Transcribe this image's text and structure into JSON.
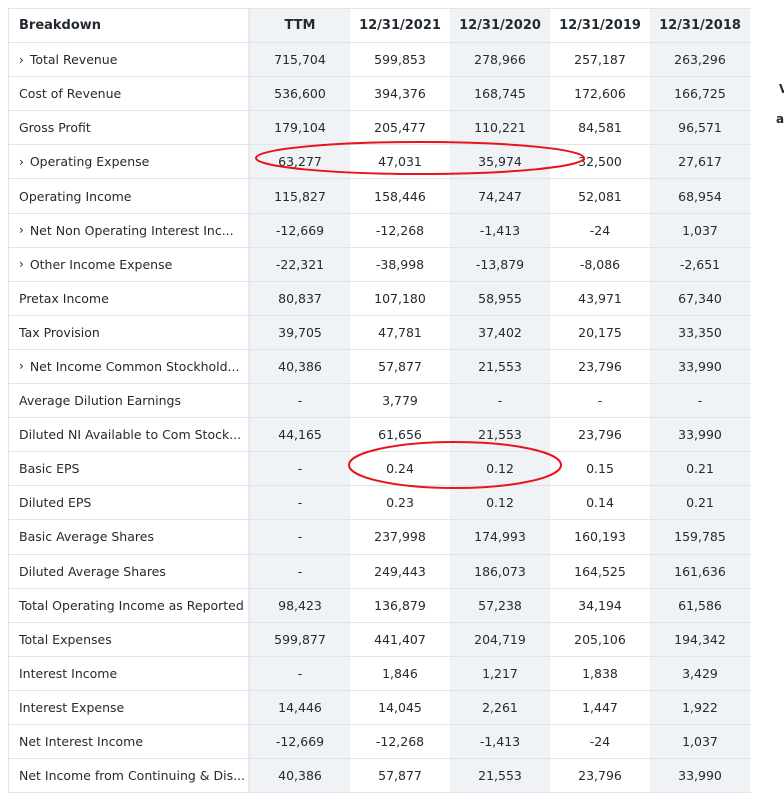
{
  "header": {
    "breakdown": "Breakdown",
    "columns": [
      "TTM",
      "12/31/2021",
      "12/31/2020",
      "12/31/2019",
      "12/31/2018"
    ]
  },
  "rows": [
    {
      "label": "Total Revenue",
      "expandable": true,
      "values": [
        "715,704",
        "599,853",
        "278,966",
        "257,187",
        "263,296"
      ]
    },
    {
      "label": "Cost of Revenue",
      "expandable": false,
      "values": [
        "536,600",
        "394,376",
        "168,745",
        "172,606",
        "166,725"
      ]
    },
    {
      "label": "Gross Profit",
      "expandable": false,
      "values": [
        "179,104",
        "205,477",
        "110,221",
        "84,581",
        "96,571"
      ]
    },
    {
      "label": "Operating Expense",
      "expandable": true,
      "values": [
        "63,277",
        "47,031",
        "35,974",
        "32,500",
        "27,617"
      ]
    },
    {
      "label": "Operating Income",
      "expandable": false,
      "values": [
        "115,827",
        "158,446",
        "74,247",
        "52,081",
        "68,954"
      ]
    },
    {
      "label": "Net Non Operating Interest Inc...",
      "expandable": true,
      "values": [
        "-12,669",
        "-12,268",
        "-1,413",
        "-24",
        "1,037"
      ]
    },
    {
      "label": "Other Income Expense",
      "expandable": true,
      "values": [
        "-22,321",
        "-38,998",
        "-13,879",
        "-8,086",
        "-2,651"
      ]
    },
    {
      "label": "Pretax Income",
      "expandable": false,
      "values": [
        "80,837",
        "107,180",
        "58,955",
        "43,971",
        "67,340"
      ]
    },
    {
      "label": "Tax Provision",
      "expandable": false,
      "values": [
        "39,705",
        "47,781",
        "37,402",
        "20,175",
        "33,350"
      ]
    },
    {
      "label": "Net Income Common Stockhold...",
      "expandable": true,
      "values": [
        "40,386",
        "57,877",
        "21,553",
        "23,796",
        "33,990"
      ]
    },
    {
      "label": "Average Dilution Earnings",
      "expandable": false,
      "values": [
        "-",
        "3,779",
        "-",
        "-",
        "-"
      ]
    },
    {
      "label": "Diluted NI Available to Com Stock...",
      "expandable": false,
      "values": [
        "44,165",
        "61,656",
        "21,553",
        "23,796",
        "33,990"
      ]
    },
    {
      "label": "Basic EPS",
      "expandable": false,
      "values": [
        "-",
        "0.24",
        "0.12",
        "0.15",
        "0.21"
      ]
    },
    {
      "label": "Diluted EPS",
      "expandable": false,
      "values": [
        "-",
        "0.23",
        "0.12",
        "0.14",
        "0.21"
      ]
    },
    {
      "label": "Basic Average Shares",
      "expandable": false,
      "values": [
        "-",
        "237,998",
        "174,993",
        "160,193",
        "159,785"
      ]
    },
    {
      "label": "Diluted Average Shares",
      "expandable": false,
      "values": [
        "-",
        "249,443",
        "186,073",
        "164,525",
        "161,636"
      ]
    },
    {
      "label": "Total Operating Income as Reported",
      "expandable": false,
      "values": [
        "98,423",
        "136,879",
        "57,238",
        "34,194",
        "61,586"
      ]
    },
    {
      "label": "Total Expenses",
      "expandable": false,
      "values": [
        "599,877",
        "441,407",
        "204,719",
        "205,106",
        "194,342"
      ]
    },
    {
      "label": "Interest Income",
      "expandable": false,
      "values": [
        "-",
        "1,846",
        "1,217",
        "1,838",
        "3,429"
      ]
    },
    {
      "label": "Interest Expense",
      "expandable": false,
      "values": [
        "14,446",
        "14,045",
        "2,261",
        "1,447",
        "1,922"
      ]
    },
    {
      "label": "Net Interest Income",
      "expandable": false,
      "values": [
        "-12,669",
        "-12,268",
        "-1,413",
        "-24",
        "1,037"
      ]
    },
    {
      "label": "Net Income from Continuing & Dis...",
      "expandable": false,
      "values": [
        "40,386",
        "57,877",
        "21,553",
        "23,796",
        "33,990"
      ]
    }
  ],
  "chevron_glyph": "›",
  "side_fragments": [
    "V",
    "a"
  ],
  "colors": {
    "annotation": "#e8141c",
    "shade": "#f0f3f5",
    "border": "#e0e4e9"
  }
}
